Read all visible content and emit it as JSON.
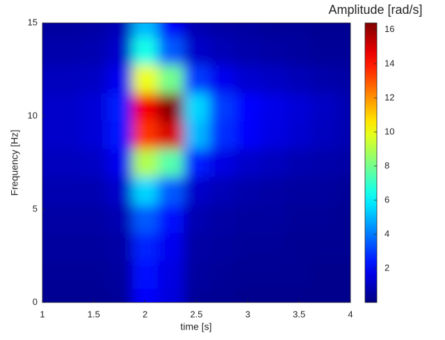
{
  "chart_data": {
    "type": "heatmap",
    "colorbar_label": "Amplitude [rad/s]",
    "x_label": "time [s]",
    "y_label": "Frequency [Hz]",
    "colormap": "jet",
    "x": [
      1,
      1.25,
      1.5,
      1.75,
      2,
      2.25,
      2.5,
      2.75,
      3,
      3.25,
      3.5,
      3.75,
      4
    ],
    "y": [
      0,
      1.5,
      3,
      4.5,
      6,
      7.5,
      9,
      10.5,
      12,
      13.5,
      15
    ],
    "z": [
      [
        0.3,
        0.3,
        0.3,
        0.4,
        2.0,
        1.5,
        0.4,
        0.3,
        0.2,
        0.2,
        0.2,
        0.2,
        0.2
      ],
      [
        0.4,
        0.4,
        0.4,
        0.5,
        2.2,
        1.6,
        0.5,
        0.4,
        0.3,
        0.3,
        0.3,
        0.2,
        0.2
      ],
      [
        0.5,
        0.5,
        0.5,
        0.6,
        2.6,
        1.8,
        0.6,
        0.5,
        0.4,
        0.4,
        0.3,
        0.3,
        0.3
      ],
      [
        0.6,
        0.6,
        0.6,
        0.8,
        3.5,
        2.2,
        0.8,
        0.6,
        0.5,
        0.5,
        0.4,
        0.4,
        0.3
      ],
      [
        0.8,
        0.8,
        0.8,
        1.2,
        5.5,
        3.5,
        1.2,
        0.9,
        0.7,
        0.6,
        0.5,
        0.5,
        0.4
      ],
      [
        1.0,
        1.0,
        1.1,
        1.8,
        9.0,
        7.5,
        2.5,
        1.6,
        1.2,
        1.0,
        0.8,
        0.7,
        0.6
      ],
      [
        1.2,
        1.2,
        1.4,
        2.4,
        13.5,
        15.0,
        5.0,
        2.8,
        2.0,
        1.6,
        1.3,
        1.0,
        0.8
      ],
      [
        1.2,
        1.2,
        1.4,
        2.5,
        14.5,
        16.3,
        5.5,
        3.0,
        2.1,
        1.7,
        1.4,
        1.1,
        0.8
      ],
      [
        1.0,
        1.0,
        1.1,
        1.8,
        10.0,
        8.0,
        3.0,
        1.8,
        1.3,
        1.1,
        0.9,
        0.7,
        0.6
      ],
      [
        0.7,
        0.7,
        0.8,
        1.2,
        6.5,
        3.5,
        1.2,
        0.9,
        0.7,
        0.6,
        0.5,
        0.4,
        0.4
      ],
      [
        0.5,
        0.5,
        0.6,
        0.9,
        5.0,
        2.0,
        0.8,
        0.6,
        0.5,
        0.4,
        0.4,
        0.3,
        0.3
      ]
    ],
    "xlim": [
      1,
      4
    ],
    "ylim": [
      0,
      15
    ],
    "xticks": [
      1,
      1.5,
      2,
      2.5,
      3,
      3.5,
      4
    ],
    "yticks": [
      0,
      5,
      10,
      15
    ],
    "zlim": [
      0,
      16.4
    ],
    "zticks": [
      2,
      4,
      6,
      8,
      10,
      12,
      14,
      16
    ]
  }
}
